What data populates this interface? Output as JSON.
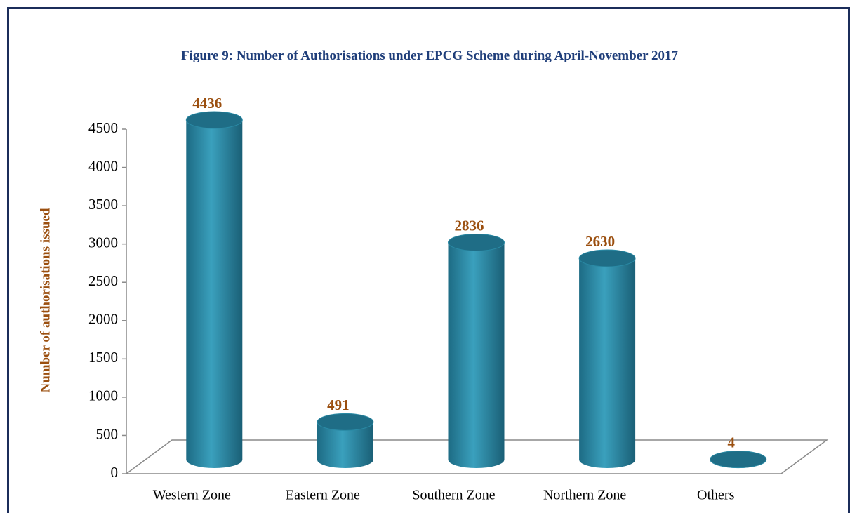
{
  "chart_data": {
    "type": "bar",
    "title": "Figure 9: Number of Authorisations under EPCG Scheme during April-November 2017",
    "y_label": "Number of authorisations issued",
    "categories": [
      "Western Zone",
      "Eastern Zone",
      "Southern Zone",
      "Northern Zone",
      "Others"
    ],
    "values": [
      4436,
      491,
      2836,
      2630,
      4
    ],
    "color": "#2f8ba6",
    "ylim": [
      0,
      4500
    ],
    "yticks": [
      0,
      500,
      1000,
      1500,
      2000,
      2500,
      3000,
      3500,
      4000,
      4500
    ],
    "grid": false
  }
}
